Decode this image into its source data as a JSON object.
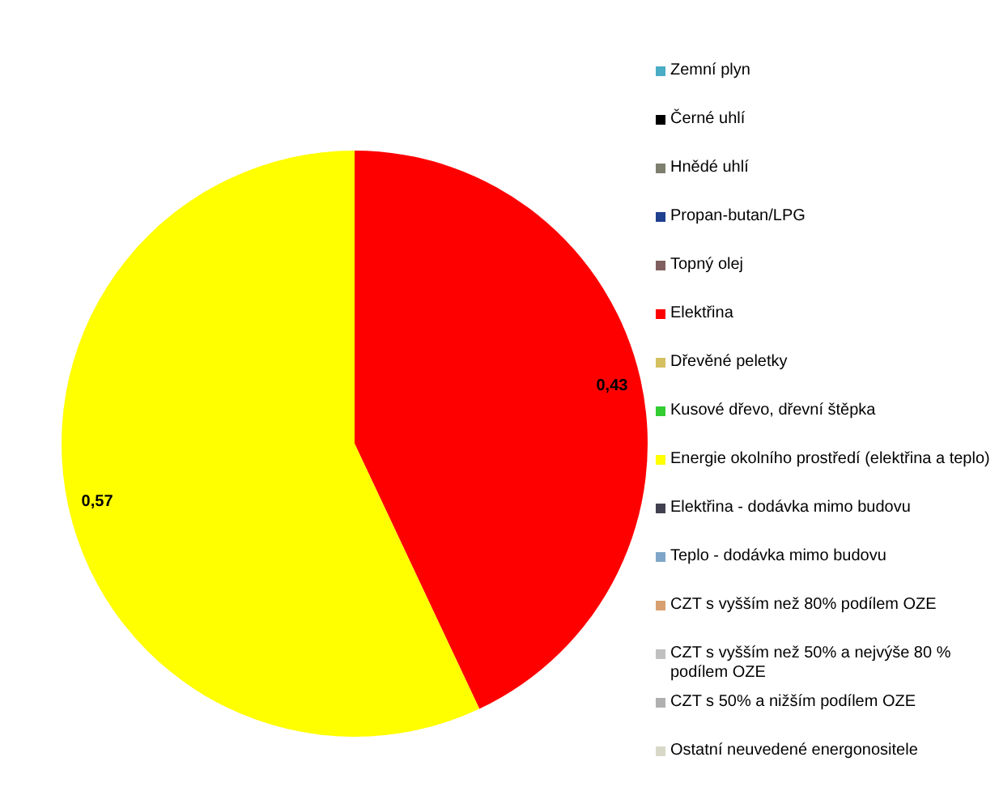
{
  "chart_data": {
    "type": "pie",
    "categories": [
      "Zemní plyn",
      "Černé uhlí",
      "Hnědé uhlí",
      "Propan-butan/LPG",
      "Topný olej",
      "Elektřina",
      "Dřevěné peletky",
      "Kusové dřevo, dřevní štěpka",
      "Energie okolního prostředí (elektřina a teplo)",
      "Elektřina - dodávka mimo budovu",
      "Teplo - dodávka mimo budovu",
      "CZT s vyšším než 80% podílem OZE",
      "CZT s vyšším než 50% a nejvýše 80 % podílem OZE",
      "CZT s 50% a nižším podílem OZE",
      "Ostatní neuvedené energonositele"
    ],
    "values": [
      0,
      0,
      0,
      0,
      0,
      0.43,
      0,
      0,
      0.57,
      0,
      0,
      0,
      0,
      0,
      0
    ],
    "value_labels": [
      null,
      null,
      null,
      null,
      null,
      "0,43",
      null,
      null,
      "0,57",
      null,
      null,
      null,
      null,
      null,
      null
    ],
    "colors": [
      "#4bacc6",
      "#000000",
      "#7f7f6f",
      "#1f3f8f",
      "#7f5f5f",
      "#ff0000",
      "#d4c060",
      "#33cc33",
      "#ffff00",
      "#404050",
      "#7fa6c8",
      "#d8a070",
      "#c0c0c0",
      "#b0b0b0",
      "#d8d8c8"
    ],
    "legend": "right"
  }
}
